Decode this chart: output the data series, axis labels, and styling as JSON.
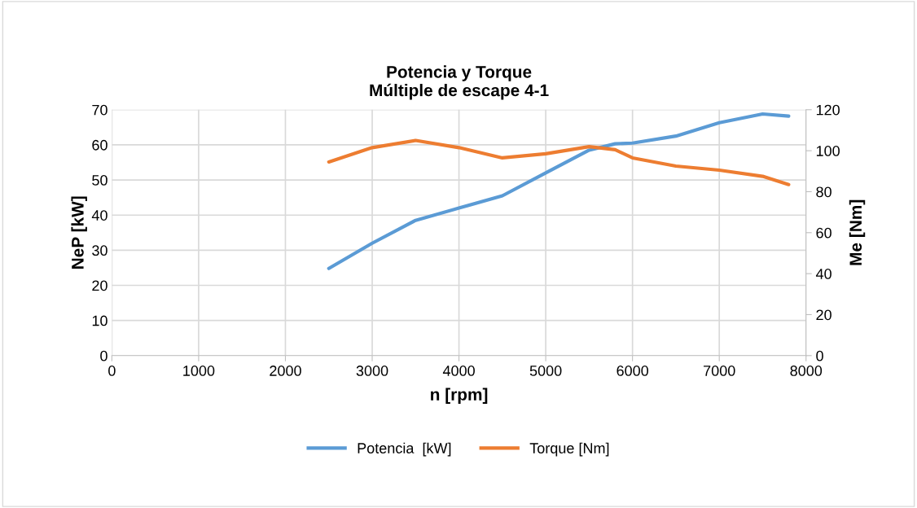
{
  "chart_data": {
    "type": "line",
    "title": "Potencia y Torque\nMúltiple de escape 4-1",
    "xlabel": "n [rpm]",
    "ylabel": "NeP [kW]",
    "y2label": "Me [Nm]",
    "x": [
      2500,
      3000,
      3500,
      4000,
      4500,
      5000,
      5500,
      5800,
      6000,
      6500,
      7000,
      7500,
      7800
    ],
    "series": [
      {
        "name": "Potencia  [kW]",
        "color": "#5b9bd5",
        "values": [
          24.8,
          32,
          38.5,
          42,
          45.5,
          52,
          58.5,
          60.3,
          60.5,
          62.5,
          66.3,
          68.8,
          68.2
        ]
      },
      {
        "name": "Torque [Nm]",
        "color": "#ed7d31",
        "axis": "y2",
        "values": [
          94.5,
          101.5,
          105,
          101.5,
          96.5,
          98.5,
          102,
          100.5,
          96.5,
          92.5,
          90.5,
          87.5,
          83.5
        ]
      }
    ],
    "xlim": [
      0,
      8000
    ],
    "xticks": [
      0,
      1000,
      2000,
      3000,
      4000,
      5000,
      6000,
      7000,
      8000
    ],
    "ylim": [
      0,
      70
    ],
    "yticks": [
      0,
      10,
      20,
      30,
      40,
      50,
      60,
      70
    ],
    "y2lim": [
      0,
      120
    ],
    "y2ticks": [
      0,
      20,
      40,
      60,
      80,
      100,
      120
    ],
    "grid": true,
    "legend": "bottom",
    "marker": "none",
    "line_style": "solid"
  }
}
